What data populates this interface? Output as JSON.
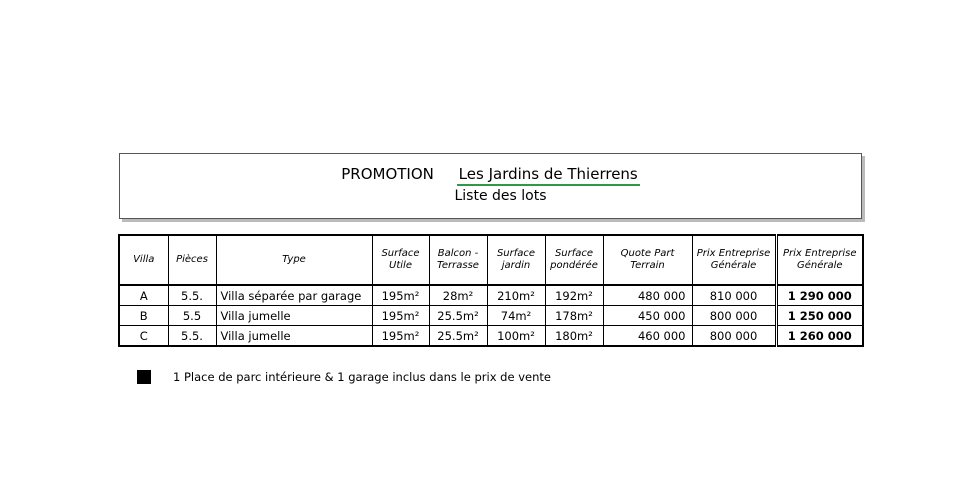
{
  "header": {
    "promotion": "PROMOTION",
    "name": "Les Jardins de Thierrens",
    "subtitle": "Liste des lots"
  },
  "table": {
    "columns": [
      "Villa",
      "Pièces",
      "Type",
      "Surface Utile",
      "Balcon - Terrasse",
      "Surface jardin",
      "Surface pondérée",
      "Quote Part Terrain",
      "Prix Entreprise Générale",
      "Prix Entreprise Générale"
    ],
    "rows": [
      [
        "A",
        "5.5.",
        "Villa séparée par  garage",
        "195m²",
        "28m²",
        "210m²",
        "192m²",
        "480 000",
        "810 000",
        "1 290 000"
      ],
      [
        "B",
        "5.5",
        "Villa jumelle",
        "195m²",
        "25.5m²",
        "74m²",
        "178m²",
        "450 000",
        "800 000",
        "1 250 000"
      ],
      [
        "C",
        "5.5.",
        "Villa jumelle",
        "195m²",
        "25.5m²",
        "100m²",
        "180m²",
        "460 000",
        "800 000",
        "1 260 000"
      ]
    ]
  },
  "note": "1 Place de parc intérieure & 1 garage inclus dans le prix de vente"
}
